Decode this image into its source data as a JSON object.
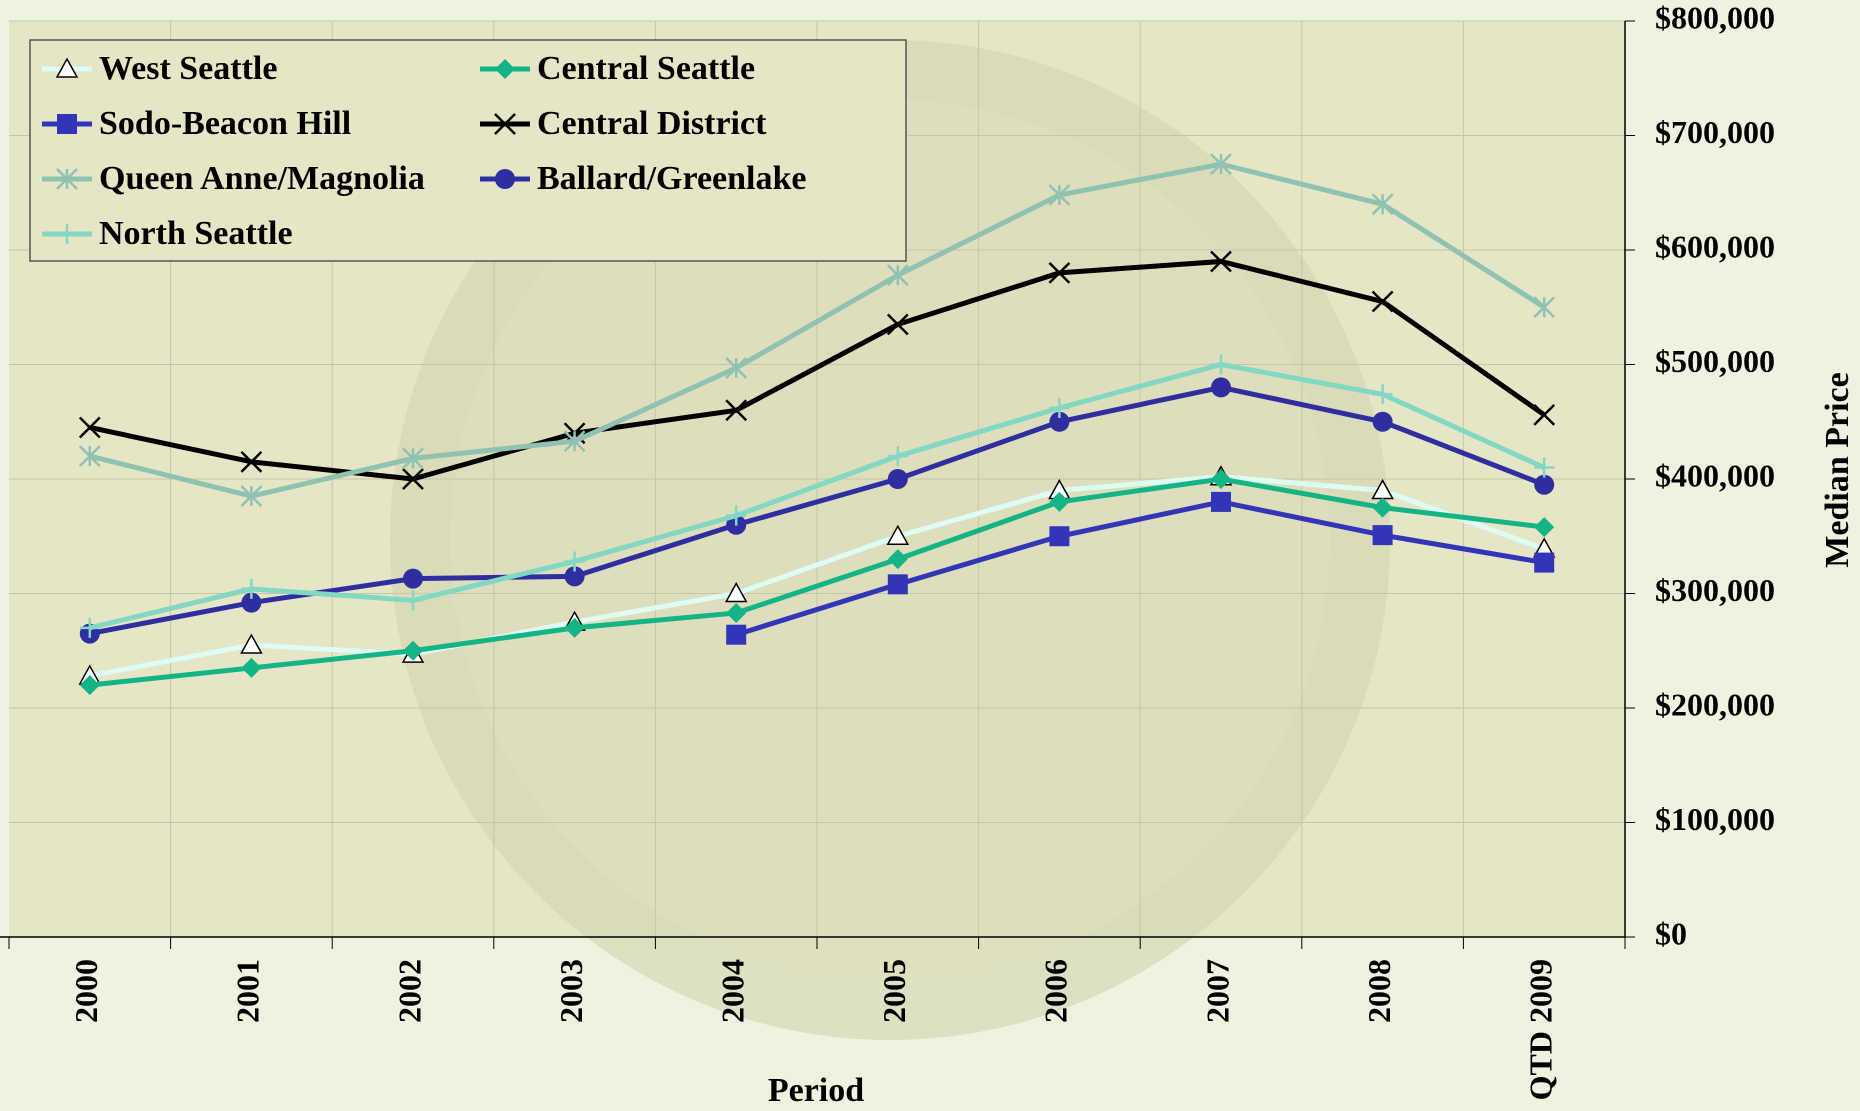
{
  "chart_data": {
    "type": "line",
    "x_label": "Period",
    "y_label": "Median Price",
    "categories": [
      "2000",
      "2001",
      "2002",
      "2003",
      "2004",
      "2005",
      "2006",
      "2007",
      "2008",
      "QTD 2009"
    ],
    "series": [
      {
        "name": "West Seattle",
        "color": "#dcfcf4",
        "marker": "triangle",
        "values": [
          228000,
          255000,
          247000,
          275000,
          300000,
          350000,
          390000,
          402000,
          390000,
          339000
        ]
      },
      {
        "name": "Central Seattle",
        "color": "#14b487",
        "marker": "diamond",
        "values": [
          220000,
          235000,
          250000,
          270000,
          283000,
          330000,
          380000,
          400000,
          375000,
          358000
        ]
      },
      {
        "name": "Sodo-Beacon Hill",
        "color": "#3434b8",
        "marker": "square",
        "values": [
          null,
          null,
          null,
          null,
          264000,
          308000,
          350000,
          380000,
          351000,
          327000
        ]
      },
      {
        "name": "Central District",
        "color": "#000000",
        "marker": "x",
        "values": [
          445000,
          415000,
          400000,
          440000,
          460000,
          535000,
          580000,
          590000,
          555000,
          456000
        ]
      },
      {
        "name": "Queen Anne/Magnolia",
        "color": "#90c2b2",
        "marker": "asterisk",
        "values": [
          420000,
          385000,
          418000,
          433000,
          497000,
          578000,
          648000,
          675000,
          640000,
          550000
        ]
      },
      {
        "name": "Ballard/Greenlake",
        "color": "#2e2ea0",
        "marker": "circle",
        "values": [
          265000,
          292000,
          313000,
          315000,
          360000,
          400000,
          450000,
          480000,
          450000,
          395000
        ]
      },
      {
        "name": "North Seattle",
        "color": "#82d8c2",
        "marker": "plus",
        "values": [
          270000,
          304000,
          294000,
          328000,
          368000,
          420000,
          462000,
          500000,
          474000,
          410000
        ]
      }
    ],
    "ylim": [
      0,
      800000
    ],
    "yticks": [
      {
        "value": 0,
        "label": "$0"
      },
      {
        "value": 100000,
        "label": "$100,000"
      },
      {
        "value": 200000,
        "label": "$200,000"
      },
      {
        "value": 300000,
        "label": "$300,000"
      },
      {
        "value": 400000,
        "label": "$400,000"
      },
      {
        "value": 500000,
        "label": "$500,000"
      },
      {
        "value": 600000,
        "label": "$600,000"
      },
      {
        "value": 700000,
        "label": "$700,000"
      },
      {
        "value": 800000,
        "label": "$800,000"
      }
    ],
    "y_axis_side": "right",
    "grid": true,
    "legend": "top-left"
  }
}
